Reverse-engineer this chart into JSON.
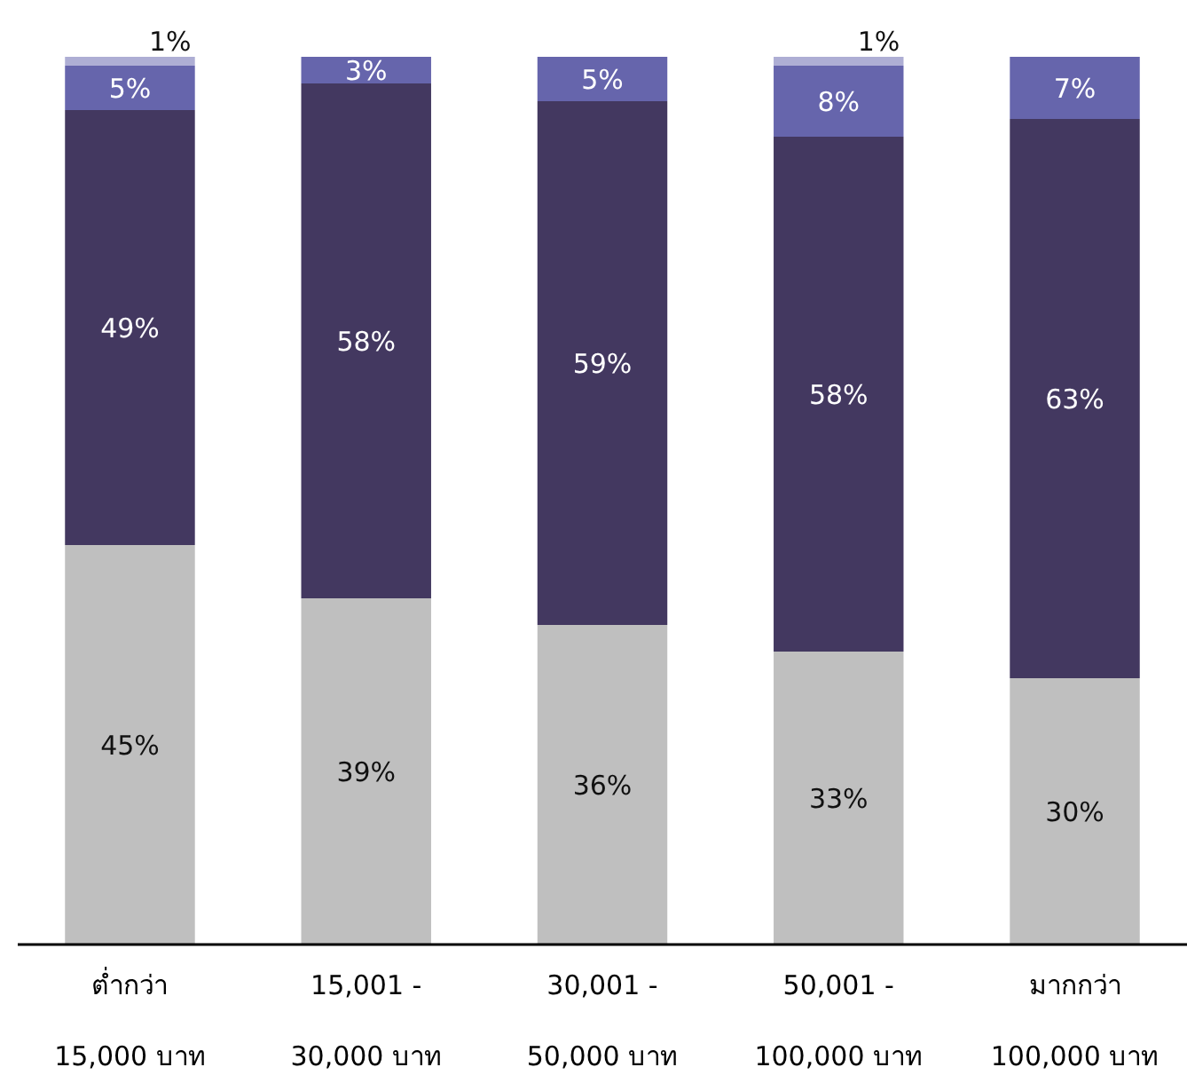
{
  "chart_data": {
    "type": "bar",
    "stacked": true,
    "categories": [
      "ต่ำกว่า\n15,000 บาท",
      "15,001 -\n30,000 บาท",
      "30,001 -\n50,000 บาท",
      "50,001 -\n100,000 บาท",
      "มากกว่า\n100,000 บาท"
    ],
    "series": [
      {
        "color": "#bfbfbf",
        "values": [
          45,
          39,
          36,
          33,
          30
        ],
        "value_labels": [
          "45%",
          "39%",
          "36%",
          "33%",
          "30%"
        ]
      },
      {
        "color": "#433860",
        "values": [
          49,
          58,
          59,
          58,
          63
        ],
        "value_labels": [
          "49%",
          "58%",
          "59%",
          "58%",
          "63%"
        ]
      },
      {
        "color": "#6665ac",
        "values": [
          5,
          3,
          5,
          8,
          7
        ],
        "value_labels": [
          "5%",
          "3%",
          "5%",
          "8%",
          "7%"
        ]
      },
      {
        "color": "#aeaed4",
        "values": [
          1,
          null,
          null,
          1,
          null
        ],
        "value_labels": [
          "1%",
          null,
          null,
          "1%",
          null
        ]
      }
    ]
  }
}
